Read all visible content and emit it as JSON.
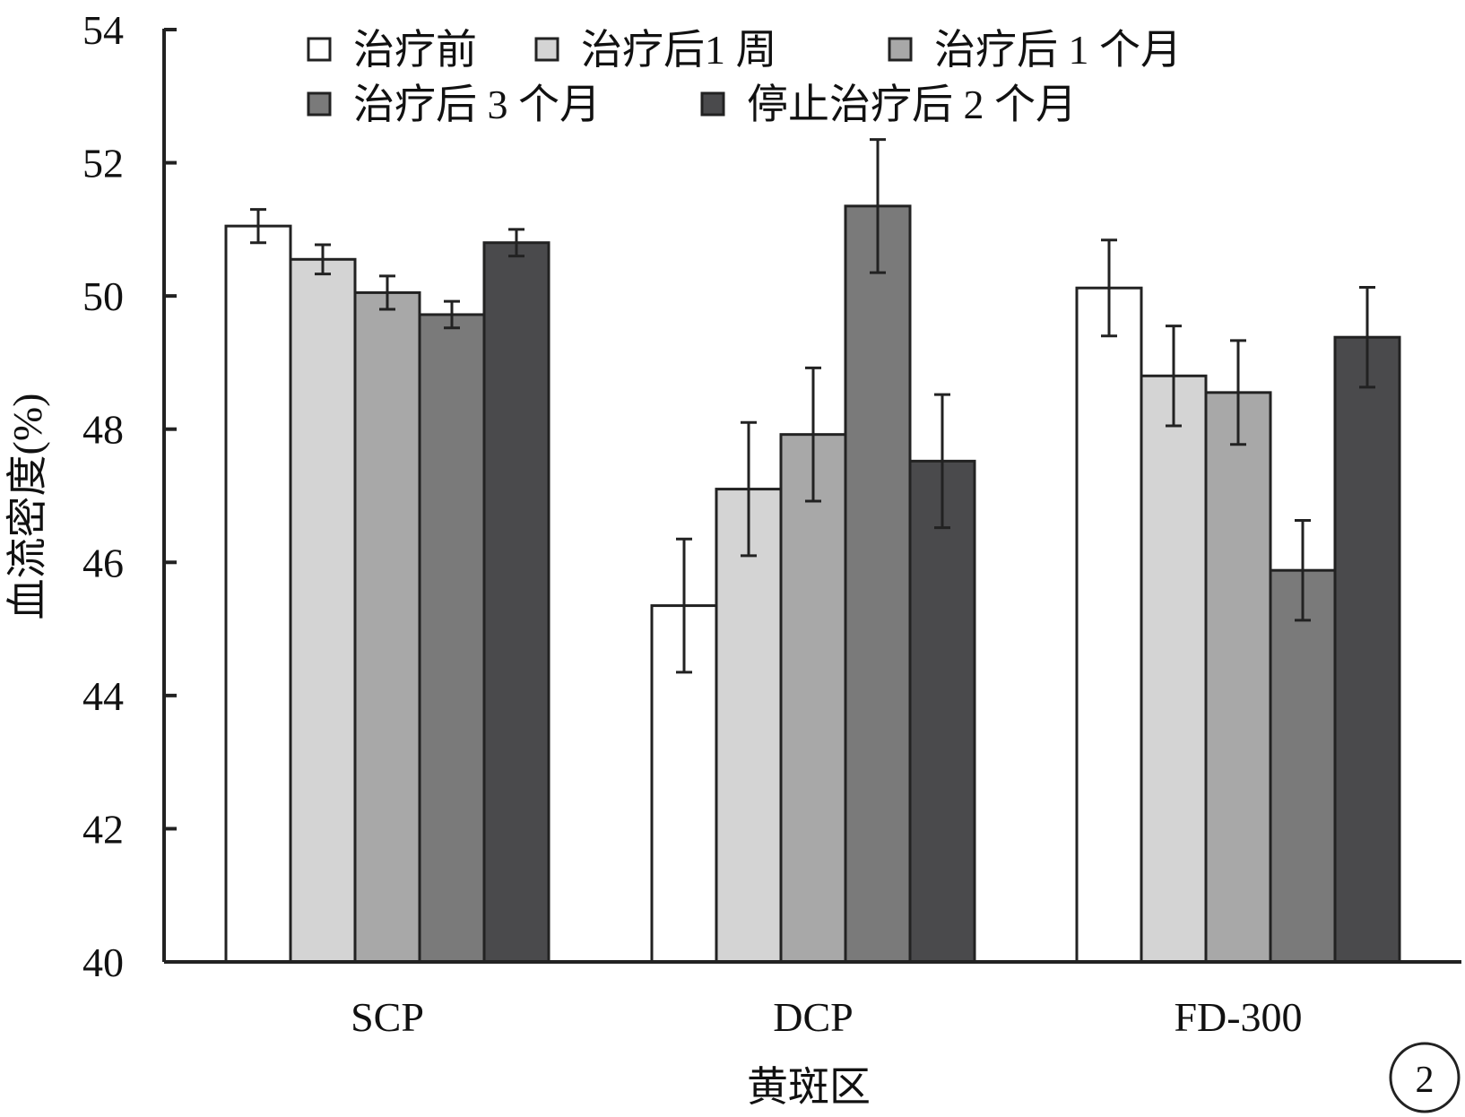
{
  "chart_data": {
    "type": "bar",
    "title": "",
    "xlabel": "黄斑区",
    "ylabel": "血流密度(%)",
    "ylim": [
      40,
      54
    ],
    "yticks": [
      40,
      42,
      44,
      46,
      48,
      50,
      52,
      54
    ],
    "categories": [
      "SCP",
      "DCP",
      "FD-300"
    ],
    "series": [
      {
        "name": "治疗前",
        "color": "#ffffff",
        "values": [
          51.05,
          45.35,
          50.12
        ],
        "errors": [
          0.25,
          1.0,
          0.72
        ]
      },
      {
        "name": "治疗后1 周",
        "color": "#d4d4d4",
        "values": [
          50.55,
          47.1,
          48.8
        ],
        "errors": [
          0.22,
          1.0,
          0.75
        ]
      },
      {
        "name": "治疗后 1 个月",
        "color": "#a8a8a8",
        "values": [
          50.05,
          47.92,
          48.55
        ],
        "errors": [
          0.25,
          1.0,
          0.78
        ]
      },
      {
        "name": "治疗后 3 个月",
        "color": "#7a7a7a",
        "values": [
          49.72,
          51.35,
          45.88
        ],
        "errors": [
          0.2,
          1.0,
          0.75
        ]
      },
      {
        "name": "停止治疗后 2 个月",
        "color": "#4a4a4c",
        "values": [
          50.8,
          47.52,
          49.38
        ],
        "errors": [
          0.2,
          1.0,
          0.75
        ]
      }
    ],
    "legend": "top",
    "grid": false
  },
  "panel_label": "2"
}
